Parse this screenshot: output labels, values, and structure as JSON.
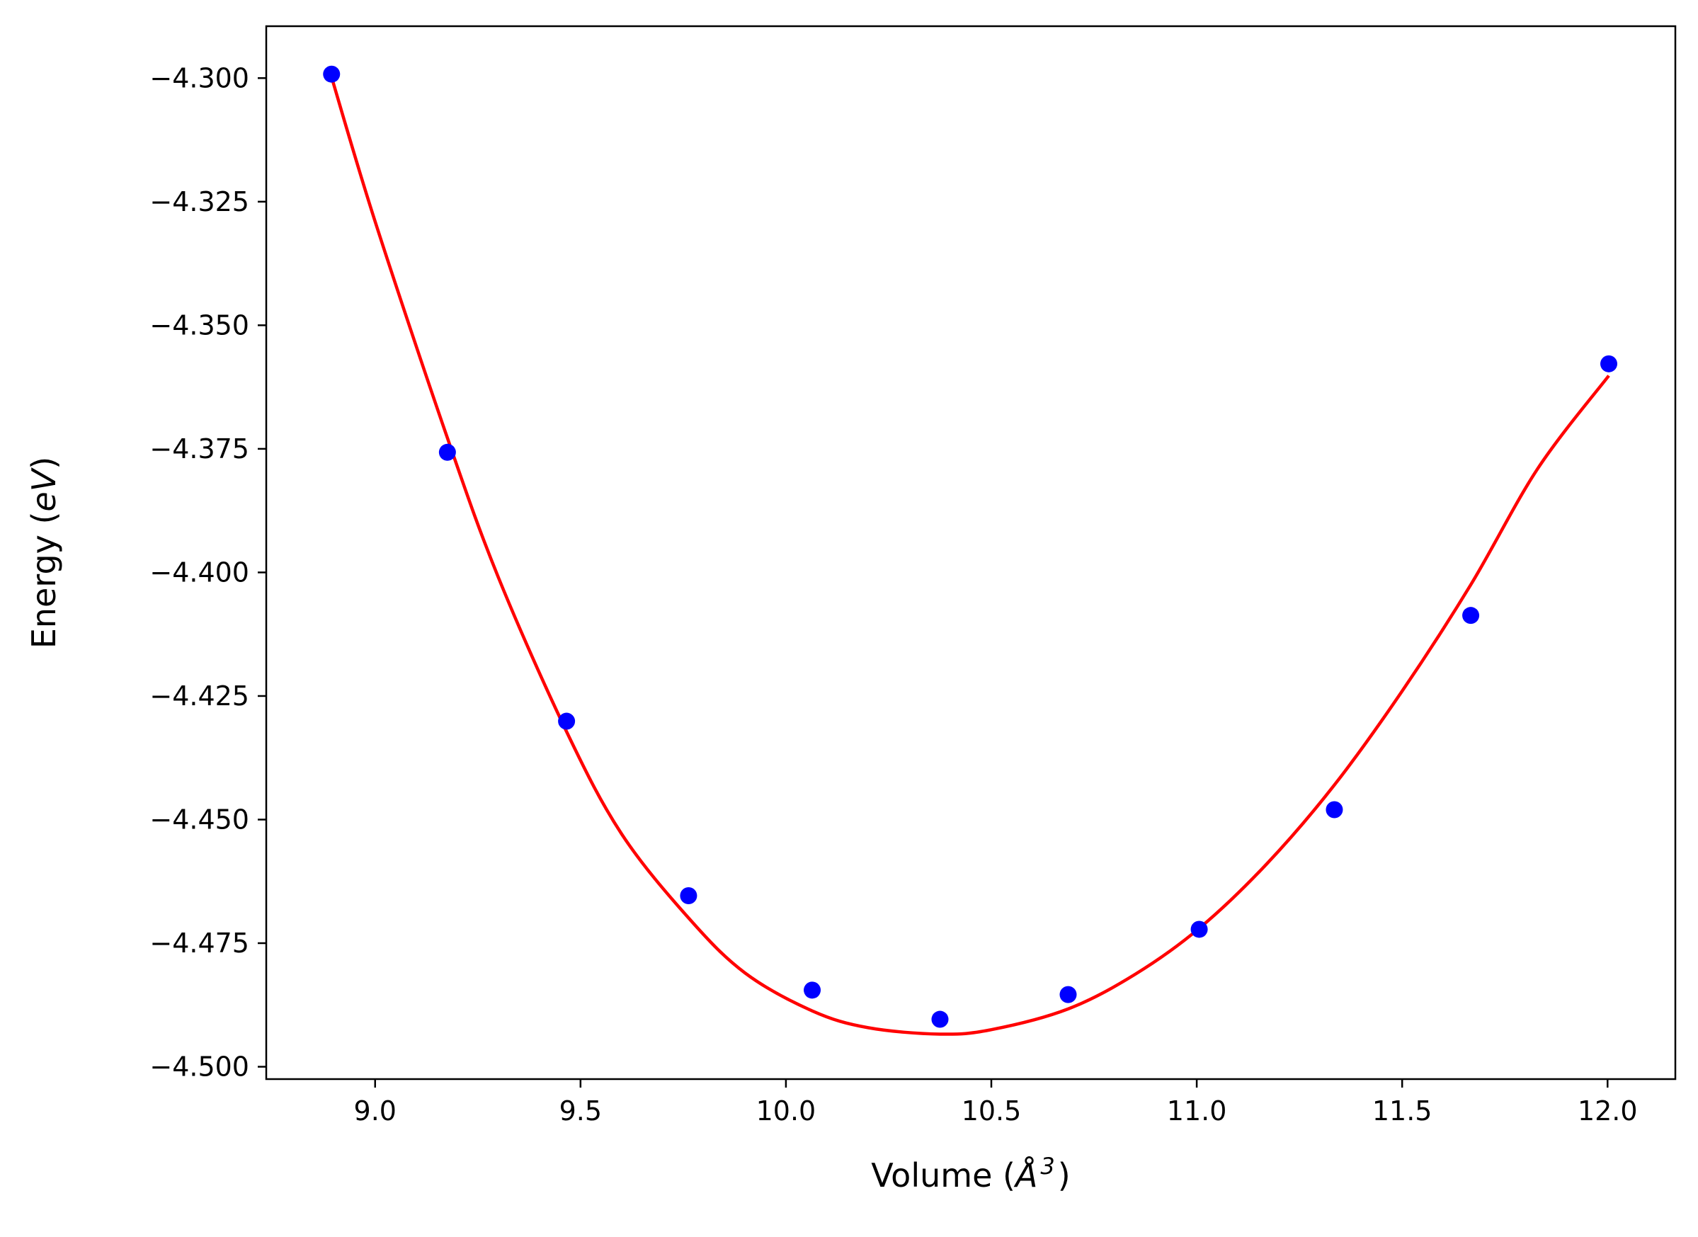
{
  "chart_data": {
    "type": "scatter",
    "title": "",
    "xlabel": "Volume ($\\AA^3$)",
    "ylabel": "Energy ($eV$)",
    "xlabel_parts": {
      "prefix": "Volume (",
      "symbol": "Å",
      "sup": "3",
      "suffix": ")"
    },
    "ylabel_parts": {
      "prefix": "Energy (",
      "italic": "eV",
      "suffix": ")"
    },
    "xlim": [
      8.735,
      12.165
    ],
    "ylim": [
      -4.5025,
      -4.2895
    ],
    "x_ticks": [
      9.0,
      9.5,
      10.0,
      10.5,
      11.0,
      11.5,
      12.0
    ],
    "x_tick_labels": [
      "9.0",
      "9.5",
      "10.0",
      "10.5",
      "11.0",
      "11.5",
      "12.0"
    ],
    "y_ticks": [
      -4.3,
      -4.325,
      -4.35,
      -4.375,
      -4.4,
      -4.425,
      -4.45,
      -4.475,
      -4.5
    ],
    "y_tick_labels": [
      "−4.300",
      "−4.325",
      "−4.350",
      "−4.375",
      "−4.400",
      "−4.425",
      "−4.450",
      "−4.475",
      "−4.500"
    ],
    "grid": false,
    "series": [
      {
        "type": "scatter",
        "color": "#0000ff",
        "x": [
          8.894,
          9.176,
          9.466,
          9.763,
          10.064,
          10.375,
          10.687,
          11.006,
          11.335,
          11.667,
          12.003
        ],
        "y": [
          -4.2992,
          -4.3757,
          -4.4301,
          -4.4654,
          -4.4845,
          -4.4904,
          -4.4854,
          -4.4722,
          -4.448,
          -4.4087,
          -4.3578
        ]
      },
      {
        "type": "line",
        "color": "#ff0000",
        "x": [
          8.894,
          9.0,
          9.176,
          9.3,
          9.466,
          9.6,
          9.763,
          9.9,
          10.064,
          10.2,
          10.375,
          10.5,
          10.687,
          10.85,
          11.006,
          11.17,
          11.335,
          11.5,
          11.667,
          11.83,
          12.003
        ],
        "y": [
          -4.2998,
          -4.329,
          -4.3728,
          -4.401,
          -4.4322,
          -4.4529,
          -4.4699,
          -4.481,
          -4.4887,
          -4.4921,
          -4.4934,
          -4.4925,
          -4.4883,
          -4.4813,
          -4.472,
          -4.459,
          -4.443,
          -4.424,
          -4.4025,
          -4.379,
          -4.3602
        ]
      }
    ]
  }
}
